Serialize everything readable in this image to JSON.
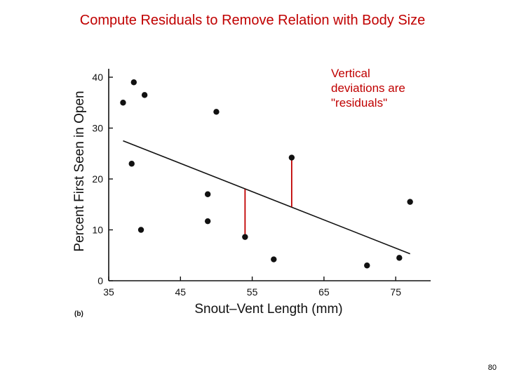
{
  "slide": {
    "title": "Compute Residuals to Remove Relation with Body Size",
    "callout_lines": [
      "Vertical",
      "deviations are",
      "\"residuals\""
    ],
    "page_number": "80"
  },
  "colors": {
    "title": "#c00000",
    "residual_lines": "#c00000",
    "points": "#111111",
    "axes": "#111111"
  },
  "chart_data": {
    "type": "scatter",
    "panel_label": "(b)",
    "xlabel": "Snout–Vent Length (mm)",
    "ylabel": "Percent First Seen in Open",
    "xlim": [
      35,
      78
    ],
    "ylim": [
      0,
      42
    ],
    "xticks": [
      35,
      45,
      55,
      65,
      75
    ],
    "yticks": [
      0,
      10,
      20,
      30,
      40
    ],
    "points": [
      {
        "x": 37,
        "y": 35
      },
      {
        "x": 38.5,
        "y": 39
      },
      {
        "x": 40,
        "y": 36.5
      },
      {
        "x": 38.2,
        "y": 23
      },
      {
        "x": 39.5,
        "y": 10
      },
      {
        "x": 50,
        "y": 33.2
      },
      {
        "x": 48.8,
        "y": 17
      },
      {
        "x": 48.8,
        "y": 11.7
      },
      {
        "x": 54,
        "y": 8.6
      },
      {
        "x": 58,
        "y": 4.2
      },
      {
        "x": 60.5,
        "y": 24.2
      },
      {
        "x": 71,
        "y": 3
      },
      {
        "x": 75.5,
        "y": 4.5
      },
      {
        "x": 77,
        "y": 15.5
      }
    ],
    "regression_line": {
      "x": [
        37,
        77
      ],
      "y": [
        27.5,
        5.3
      ]
    },
    "residuals_highlighted": [
      {
        "x": 54,
        "y_point": 8.6,
        "y_fit": 18.0
      },
      {
        "x": 60.5,
        "y_point": 24.2,
        "y_fit": 14.5
      }
    ]
  }
}
